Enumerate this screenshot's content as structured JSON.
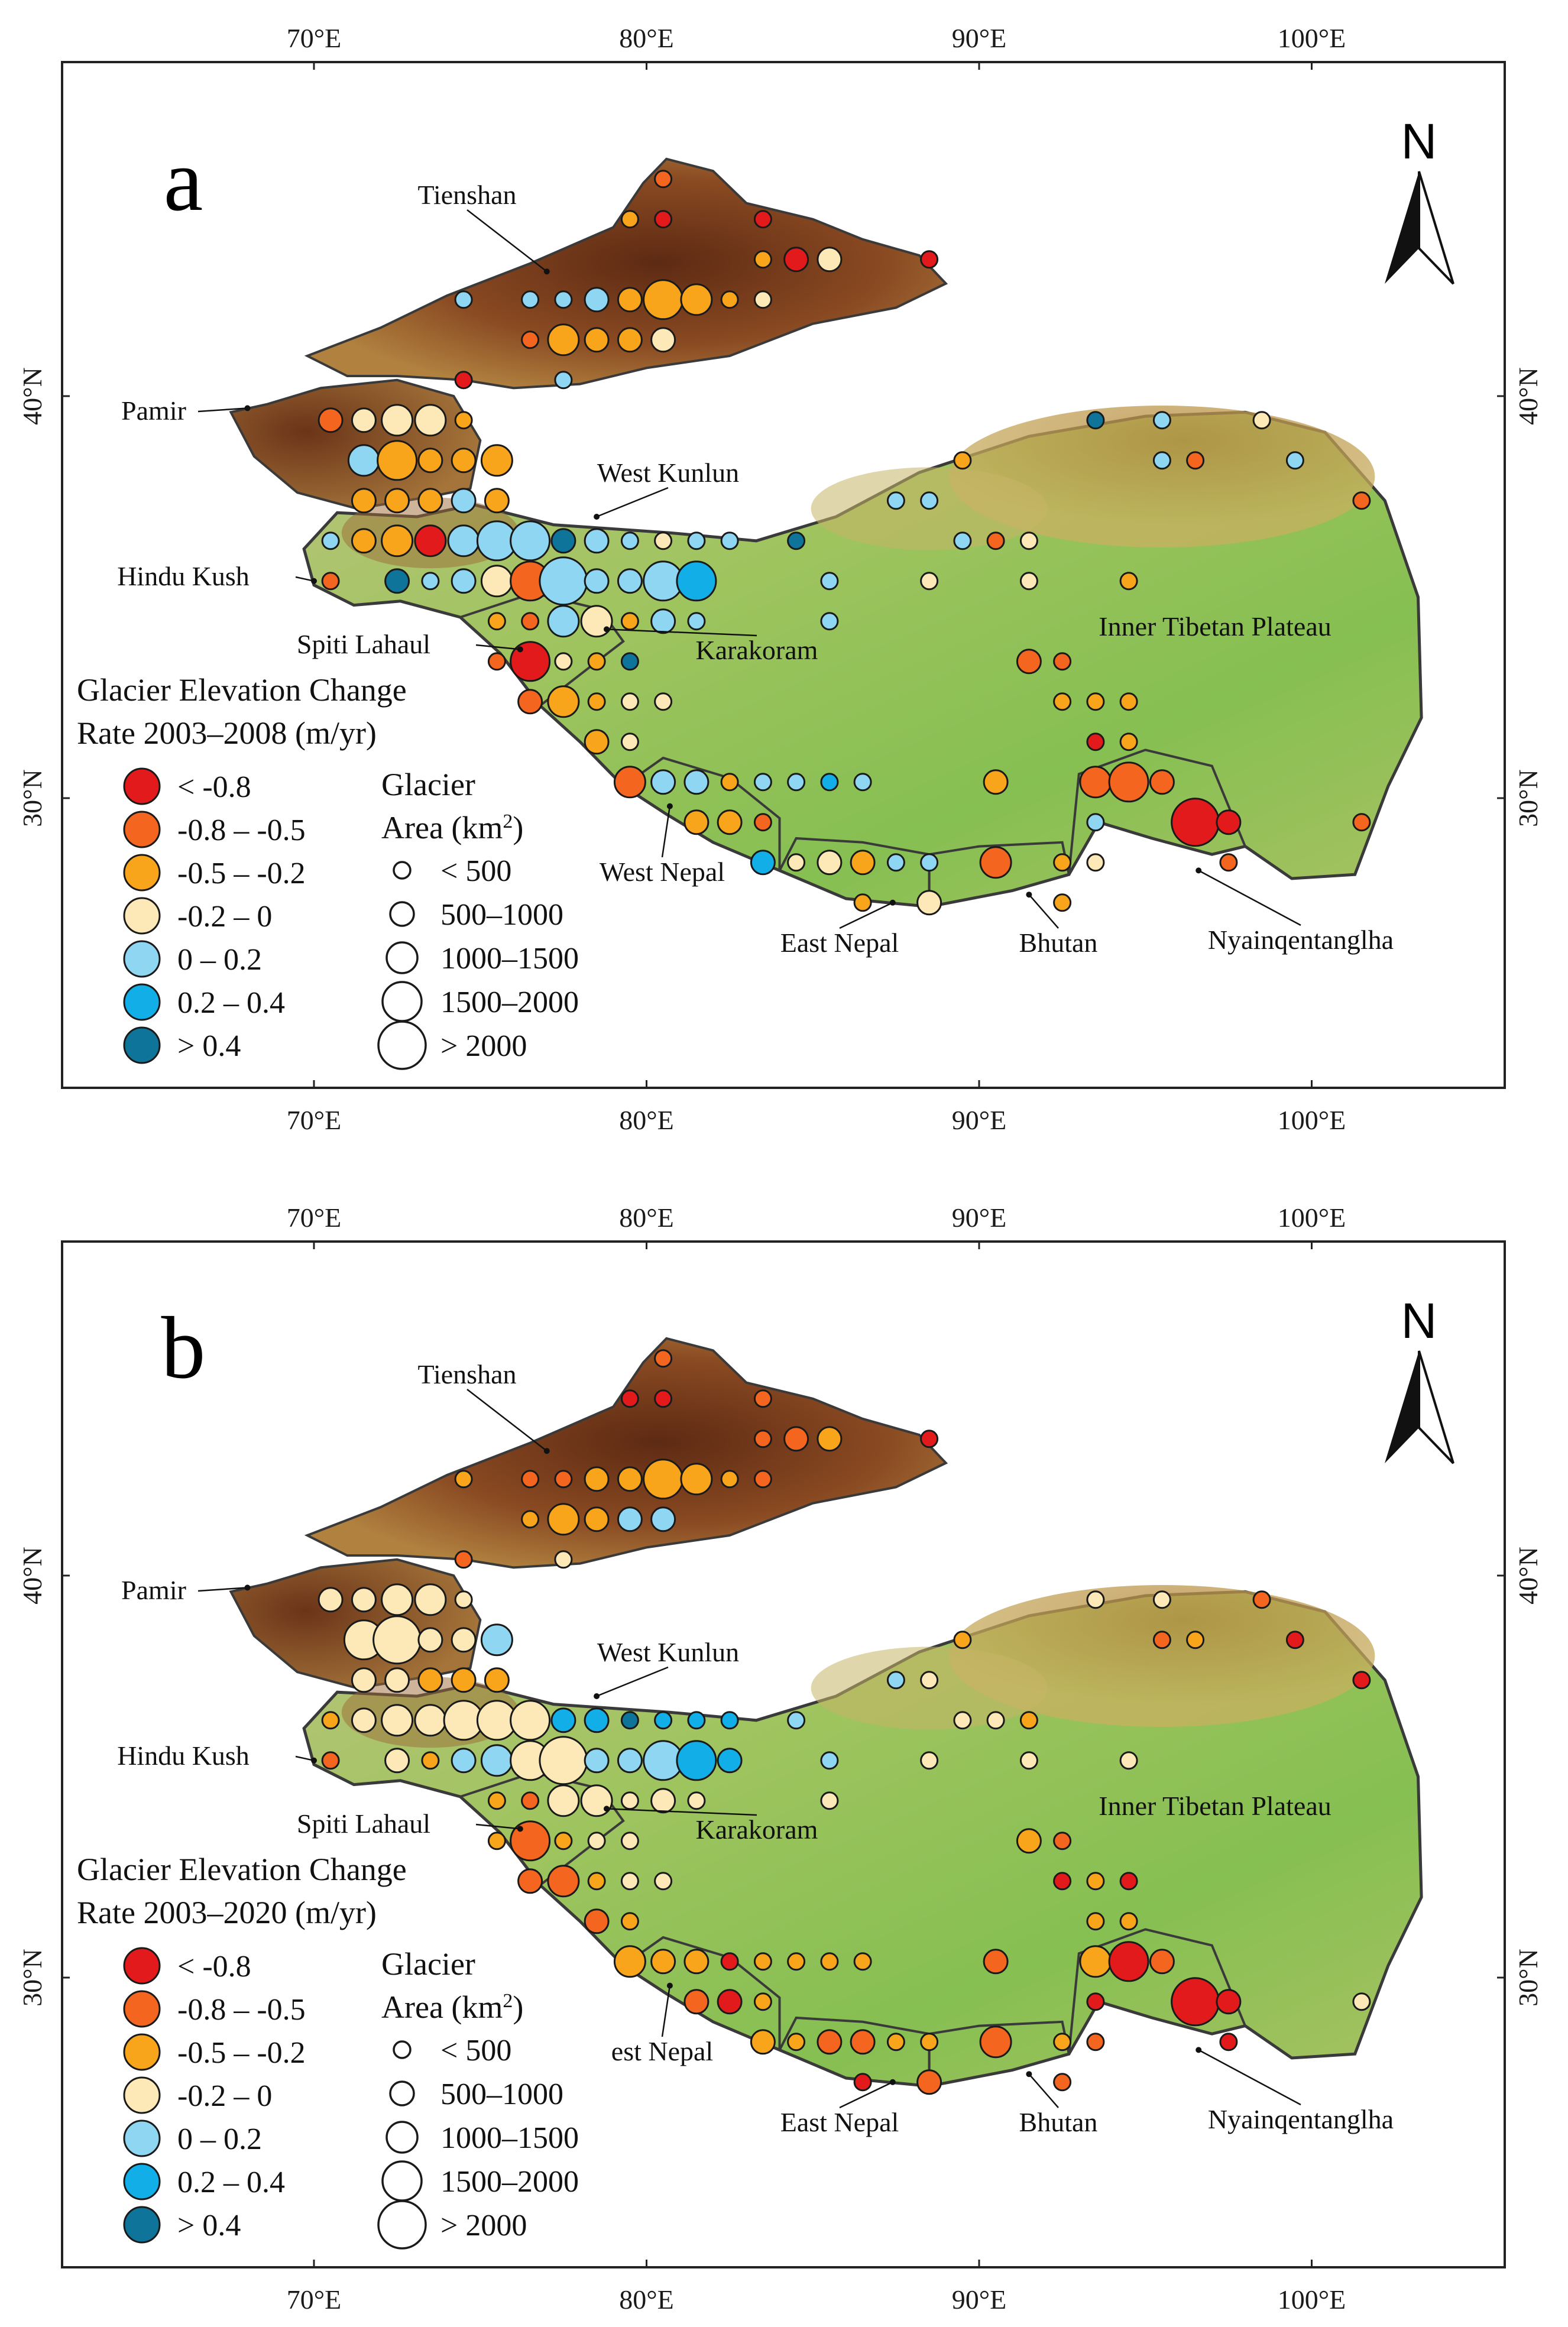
{
  "colors": {
    "lt_neg08": "#e31a1c",
    "n08_n05": "#f4661f",
    "n05_n02": "#f8a51c",
    "n02_0": "#fde9b8",
    "p0_02": "#8fd6f3",
    "p02_04": "#11aee8",
    "gt_04": "#0f7499",
    "ocean": "#ffffff",
    "outline": "#3a3a3a"
  },
  "axes": {
    "lon_labels": [
      "70°E",
      "80°E",
      "90°E",
      "100°E"
    ],
    "lat_labels": [
      "30°N",
      "40°N"
    ]
  },
  "regions": [
    "Tienshan",
    "Pamir",
    "West Kunlun",
    "Hindu Kush",
    "Spiti Lahaul",
    "Karakoram",
    "Inner Tibetan Plateau",
    "West Nepal",
    "East Nepal",
    "Bhutan",
    "Nyainqentanglha"
  ],
  "panels": [
    {
      "letter": "a",
      "legend_title_line1": "Glacier Elevation Change",
      "legend_title_line2": "Rate 2003–2008 (m/yr)",
      "west_nepal_label": "West Nepal"
    },
    {
      "letter": "b",
      "legend_title_line1": "Glacier Elevation Change",
      "legend_title_line2": "Rate 2003–2020 (m/yr)",
      "west_nepal_label": "est Nepal"
    }
  ],
  "legend": {
    "color_classes": [
      {
        "label": "< -0.8",
        "color_key": "lt_neg08"
      },
      {
        "label": "-0.8 – -0.5",
        "color_key": "n08_n05"
      },
      {
        "label": "-0.5 – -0.2",
        "color_key": "n05_n02"
      },
      {
        "label": "-0.2 – 0",
        "color_key": "n02_0"
      },
      {
        "label": "0 – 0.2",
        "color_key": "p0_02"
      },
      {
        "label": "0.2 – 0.4",
        "color_key": "p02_04"
      },
      {
        "label": "> 0.4",
        "color_key": "gt_04"
      }
    ],
    "size_title_line1": "Glacier",
    "size_title_line2": "Area (km",
    "size_title_sup": "2",
    "size_title_end": ")",
    "size_classes": [
      "< 500",
      "500–1000",
      "1000–1500",
      "1500–2000",
      "> 2000"
    ]
  },
  "north_arrow_label": "N"
}
